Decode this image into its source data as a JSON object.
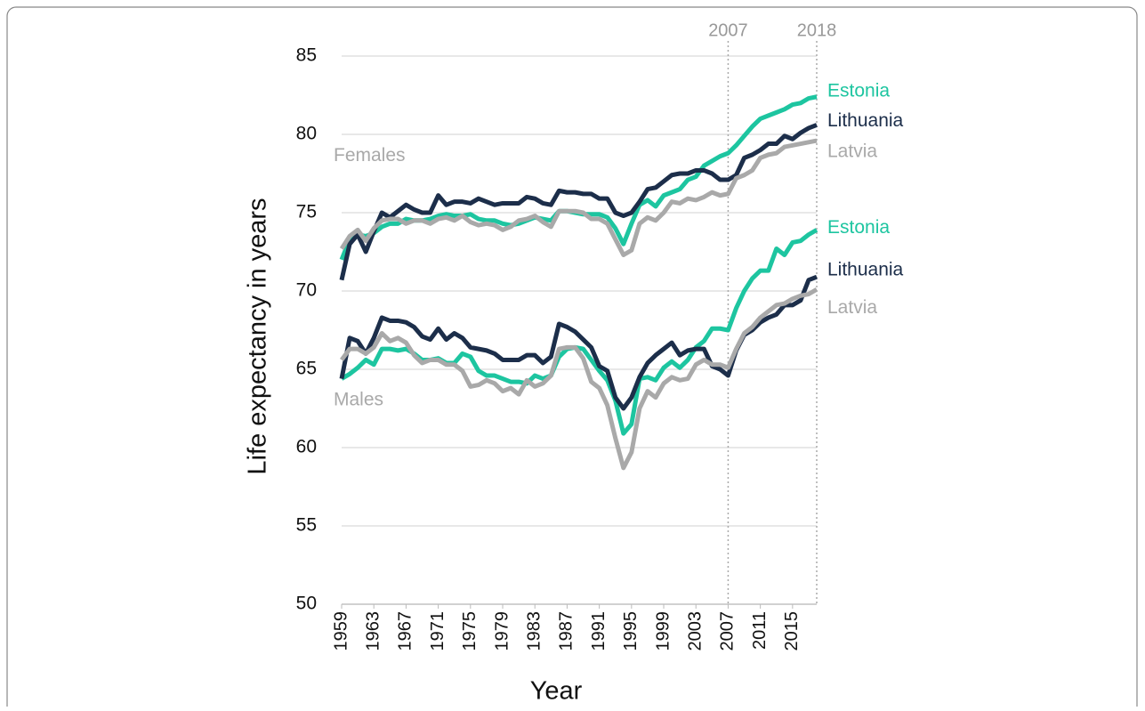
{
  "chart_data": {
    "type": "line",
    "x_label": "Year",
    "y_label": "Life expectancy in years",
    "x": [
      1959,
      1960,
      1961,
      1962,
      1963,
      1964,
      1965,
      1966,
      1967,
      1968,
      1969,
      1970,
      1971,
      1972,
      1973,
      1974,
      1975,
      1976,
      1977,
      1978,
      1979,
      1980,
      1981,
      1982,
      1983,
      1984,
      1985,
      1986,
      1987,
      1988,
      1989,
      1990,
      1991,
      1992,
      1993,
      1994,
      1995,
      1996,
      1997,
      1998,
      1999,
      2000,
      2001,
      2002,
      2003,
      2004,
      2005,
      2006,
      2007,
      2008,
      2009,
      2010,
      2011,
      2012,
      2013,
      2014,
      2015,
      2016,
      2017,
      2018
    ],
    "xlim": [
      1959,
      2018
    ],
    "xticks": [
      1959,
      1963,
      1967,
      1971,
      1975,
      1979,
      1983,
      1987,
      1991,
      1995,
      1999,
      2003,
      2007,
      2011,
      2015
    ],
    "ylim": [
      50,
      85
    ],
    "yticks": [
      50,
      55,
      60,
      65,
      70,
      75,
      80,
      85
    ],
    "grid": true,
    "vlines": [
      2007,
      2018
    ],
    "annotations": [
      {
        "text": "Females",
        "x": 1959,
        "y": 78.6
      },
      {
        "text": "Males",
        "x": 1959,
        "y": 63.0
      }
    ],
    "series": [
      {
        "name": "Estonia",
        "color": "#1dc5a0",
        "values": [
          72.0,
          73.3,
          73.6,
          73.5,
          73.7,
          74.1,
          74.3,
          74.3,
          74.6,
          74.5,
          74.5,
          74.6,
          74.8,
          74.9,
          74.8,
          74.8,
          74.9,
          74.6,
          74.5,
          74.5,
          74.3,
          74.2,
          74.3,
          74.5,
          74.7,
          74.6,
          74.5,
          75.1,
          75.1,
          75.0,
          74.9,
          74.9,
          74.9,
          74.7,
          74.0,
          73.0,
          74.3,
          75.5,
          75.8,
          75.4,
          76.1,
          76.3,
          76.5,
          77.1,
          77.3,
          78.0,
          78.3,
          78.6,
          78.8,
          79.3,
          79.9,
          80.5,
          81.0,
          81.2,
          81.4,
          81.6,
          81.9,
          82.0,
          82.3,
          82.4
        ]
      },
      {
        "name": "Lithuania",
        "color": "#1c2e4a",
        "values": [
          70.7,
          73.0,
          73.6,
          72.5,
          73.8,
          75.0,
          74.7,
          75.1,
          75.5,
          75.2,
          75.0,
          75.0,
          76.1,
          75.5,
          75.7,
          75.7,
          75.6,
          75.9,
          75.7,
          75.5,
          75.6,
          75.6,
          75.6,
          76.0,
          75.9,
          75.6,
          75.5,
          76.4,
          76.3,
          76.3,
          76.2,
          76.2,
          75.9,
          75.9,
          75.0,
          74.8,
          75.0,
          75.7,
          76.5,
          76.6,
          77.0,
          77.4,
          77.5,
          77.5,
          77.7,
          77.7,
          77.5,
          77.1,
          77.1,
          77.4,
          78.5,
          78.7,
          79.0,
          79.4,
          79.4,
          79.9,
          79.7,
          80.1,
          80.4,
          80.6
        ]
      },
      {
        "name": "Latvia",
        "color": "#a9a9a9",
        "values": [
          72.7,
          73.5,
          73.9,
          73.2,
          74.0,
          74.5,
          74.6,
          74.6,
          74.3,
          74.5,
          74.5,
          74.3,
          74.6,
          74.7,
          74.5,
          74.8,
          74.4,
          74.2,
          74.3,
          74.2,
          73.9,
          74.1,
          74.5,
          74.6,
          74.8,
          74.4,
          74.1,
          75.1,
          75.1,
          75.1,
          75.0,
          74.6,
          74.6,
          74.3,
          73.3,
          72.3,
          72.6,
          74.3,
          74.7,
          74.5,
          75.0,
          75.7,
          75.6,
          75.9,
          75.8,
          76.0,
          76.3,
          76.1,
          76.2,
          77.2,
          77.4,
          77.7,
          78.5,
          78.7,
          78.8,
          79.2,
          79.3,
          79.4,
          79.5,
          79.6
        ]
      },
      {
        "name": "Estonia",
        "color": "#1dc5a0",
        "values": [
          64.4,
          64.7,
          65.1,
          65.6,
          65.3,
          66.3,
          66.3,
          66.2,
          66.3,
          66.0,
          65.6,
          65.6,
          65.7,
          65.4,
          65.4,
          66.0,
          65.8,
          64.9,
          64.6,
          64.6,
          64.4,
          64.2,
          64.2,
          64.1,
          64.6,
          64.4,
          64.6,
          65.8,
          66.3,
          66.4,
          66.3,
          65.6,
          64.9,
          64.3,
          63.0,
          60.9,
          61.5,
          64.4,
          64.5,
          64.3,
          65.1,
          65.5,
          65.1,
          65.6,
          66.4,
          66.8,
          67.6,
          67.6,
          67.5,
          68.9,
          70.0,
          70.8,
          71.3,
          71.3,
          72.7,
          72.3,
          73.1,
          73.2,
          73.6,
          73.9
        ]
      },
      {
        "name": "Lithuania",
        "color": "#1c2e4a",
        "values": [
          64.4,
          67.0,
          66.8,
          66.0,
          67.0,
          68.3,
          68.1,
          68.1,
          68.0,
          67.7,
          67.1,
          66.9,
          67.6,
          66.9,
          67.3,
          67.0,
          66.4,
          66.3,
          66.2,
          66.0,
          65.6,
          65.6,
          65.6,
          65.9,
          65.9,
          65.4,
          65.8,
          67.9,
          67.7,
          67.4,
          66.9,
          66.4,
          65.2,
          64.9,
          63.2,
          62.5,
          63.2,
          64.5,
          65.4,
          65.9,
          66.3,
          66.7,
          65.9,
          66.2,
          66.3,
          66.3,
          65.2,
          65.0,
          64.6,
          66.2,
          67.2,
          67.5,
          68.0,
          68.3,
          68.5,
          69.1,
          69.1,
          69.4,
          70.7,
          70.9
        ]
      },
      {
        "name": "Latvia",
        "color": "#a9a9a9",
        "values": [
          65.6,
          66.3,
          66.3,
          66.0,
          66.4,
          67.3,
          66.8,
          67.0,
          66.7,
          65.9,
          65.4,
          65.6,
          65.6,
          65.3,
          65.3,
          64.9,
          63.9,
          64.0,
          64.3,
          64.1,
          63.6,
          63.8,
          63.4,
          64.3,
          63.9,
          64.1,
          64.6,
          66.3,
          66.4,
          66.4,
          65.7,
          64.2,
          63.8,
          62.7,
          60.6,
          58.7,
          59.7,
          62.5,
          63.6,
          63.2,
          64.1,
          64.5,
          64.3,
          64.4,
          65.3,
          65.6,
          65.3,
          65.3,
          65.1,
          66.3,
          67.3,
          67.7,
          68.3,
          68.7,
          69.1,
          69.2,
          69.5,
          69.7,
          69.8,
          70.1
        ]
      }
    ]
  }
}
